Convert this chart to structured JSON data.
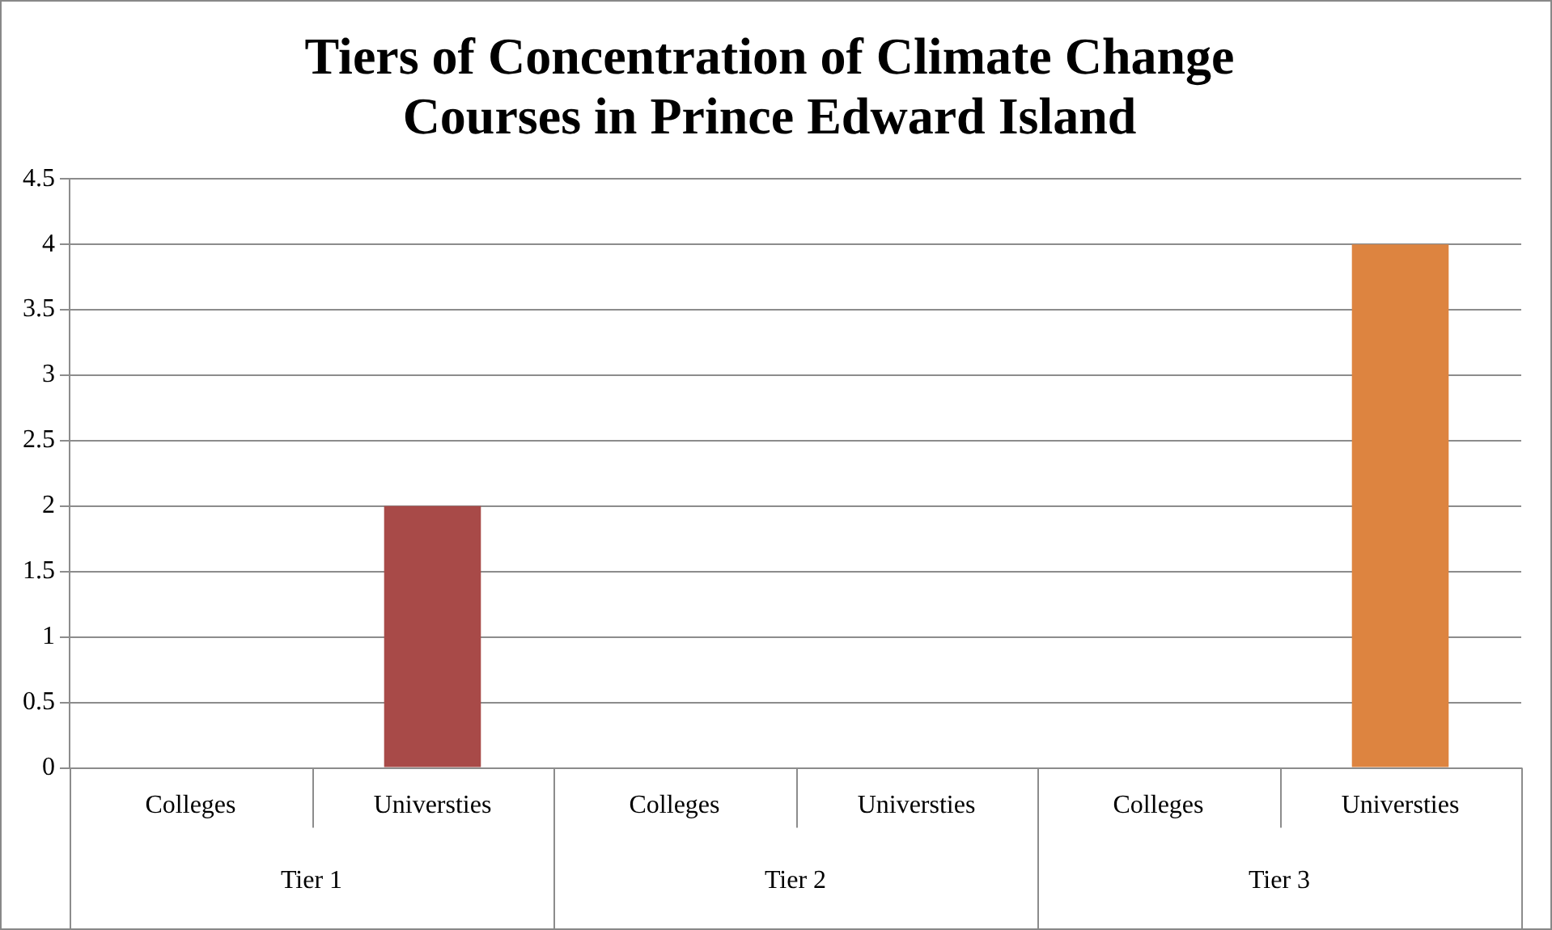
{
  "chart_data": {
    "type": "bar",
    "title": "Tiers of Concentration of Climate Change Courses in Prince Edward Island",
    "categories": [
      "Colleges",
      "Universties",
      "Colleges",
      "Universties",
      "Colleges",
      "Universties"
    ],
    "values": [
      0,
      2,
      0,
      0,
      0,
      4
    ],
    "colors": [
      "#4a7ebb",
      "#a84a48",
      "#8cac50",
      "#7e63a0",
      "#46a5c0",
      "#dd8440"
    ],
    "annotations": [
      "Tier 1",
      "Tier 2",
      "Tier 3"
    ],
    "ylim": [
      0,
      4.5
    ],
    "yticks": [
      0,
      0.5,
      1,
      1.5,
      2,
      2.5,
      3,
      3.5,
      4,
      4.5
    ],
    "grid": "y",
    "legend": false
  }
}
